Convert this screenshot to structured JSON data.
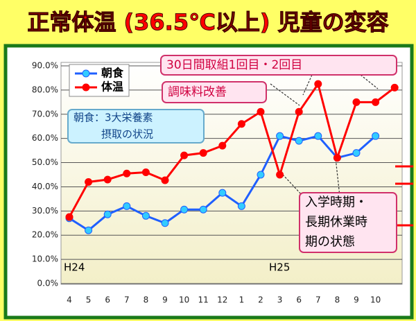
{
  "chart_data": {
    "type": "line",
    "title": "正常体温 (36.5℃以上) 児童の変容",
    "categories": [
      "4",
      "5",
      "6",
      "7",
      "8",
      "9",
      "10",
      "11",
      "12",
      "1",
      "2",
      "3",
      "6",
      "7",
      "8",
      "9",
      "10",
      null
    ],
    "series": [
      {
        "name": "朝食",
        "color": "#1f5fff",
        "marker_color": "#33ccff",
        "values": [
          27,
          22,
          28.6,
          32,
          28,
          25,
          30.6,
          30.6,
          37.5,
          32,
          45,
          61,
          59,
          61,
          52,
          54,
          61,
          null
        ]
      },
      {
        "name": "体温",
        "color": "#ff0000",
        "marker_color": "#ff0000",
        "values": [
          27.5,
          42,
          43,
          45.5,
          46,
          42.7,
          53,
          54,
          57,
          66,
          71,
          45,
          71,
          82.5,
          52,
          75,
          75,
          81
        ]
      }
    ],
    "ylim": [
      0,
      90
    ],
    "yticks": [
      {
        "value": 0,
        "label": "0.0%"
      },
      {
        "value": 10,
        "label": "10.0%"
      },
      {
        "value": 20,
        "label": "20.0%"
      },
      {
        "value": 30,
        "label": "30.0%"
      },
      {
        "value": 40,
        "label": "40.0%"
      },
      {
        "value": 50,
        "label": "50.0%"
      },
      {
        "value": 60,
        "label": "60.0%"
      },
      {
        "value": 70,
        "label": "70.0%"
      },
      {
        "value": 80,
        "label": "80.0%"
      },
      {
        "value": 90,
        "label": "90.0%"
      }
    ],
    "grid": true,
    "period_labels": [
      "H24",
      "H25"
    ],
    "annotations": [
      {
        "lines": [
          "30日間取組1回目・2回目"
        ]
      },
      {
        "lines": [
          "調味料改善"
        ]
      },
      {
        "lines": [
          "朝食：3大栄養素",
          "摂取の状況"
        ]
      },
      {
        "lines": [
          "入学時期・",
          "長期休業時",
          "期の状態"
        ]
      }
    ]
  }
}
